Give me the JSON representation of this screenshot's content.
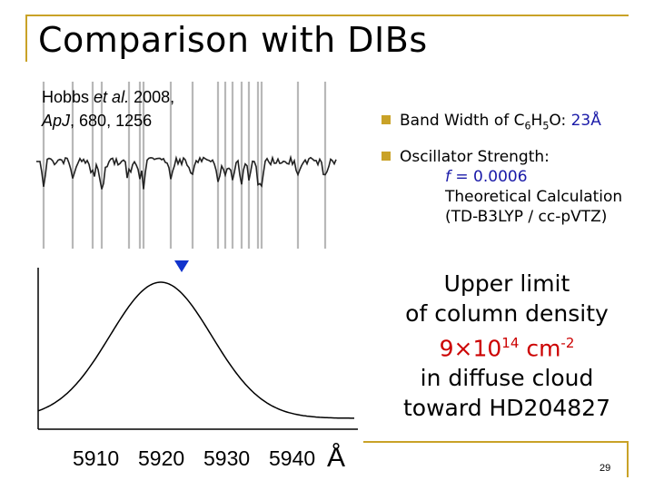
{
  "slide": {
    "title": "Comparison with DIBs",
    "page_number": "29",
    "frame_color": "#c9a227"
  },
  "citation": {
    "author": "Hobbs",
    "etal": "et al.",
    "year": "2008,",
    "journal": "ApJ",
    "volume_pages": ", 680, 1256"
  },
  "figure": {
    "x_ticks": [
      "5910",
      "5920",
      "5930",
      "5940"
    ],
    "x_unit": "Å",
    "marker_symbol": "▼",
    "marker_color": "#1133cc",
    "marker_wavelength": 5920
  },
  "bullets": {
    "band_width_label": "Band Width of C",
    "band_width_sub1": "6",
    "band_width_mid": "H",
    "band_width_sub2": "5",
    "band_width_end": "O:",
    "band_width_value": "23Å",
    "osc_label": "Oscillator Strength:",
    "osc_f": "f",
    "osc_value": " = 0.0006",
    "osc_method": "Theoretical Calculation",
    "osc_basis": "(TD-B3LYP / cc-pVTZ)",
    "accent_color": "#1a1aa8"
  },
  "conclusion": {
    "line1": "Upper limit",
    "line2": "of column density",
    "value_base": "9×10",
    "value_exp": "14",
    "value_unit": " cm",
    "value_unit_exp": "-2",
    "line4": "in diffuse cloud",
    "line5": "toward HD204827",
    "highlight_color": "#cc0000"
  }
}
